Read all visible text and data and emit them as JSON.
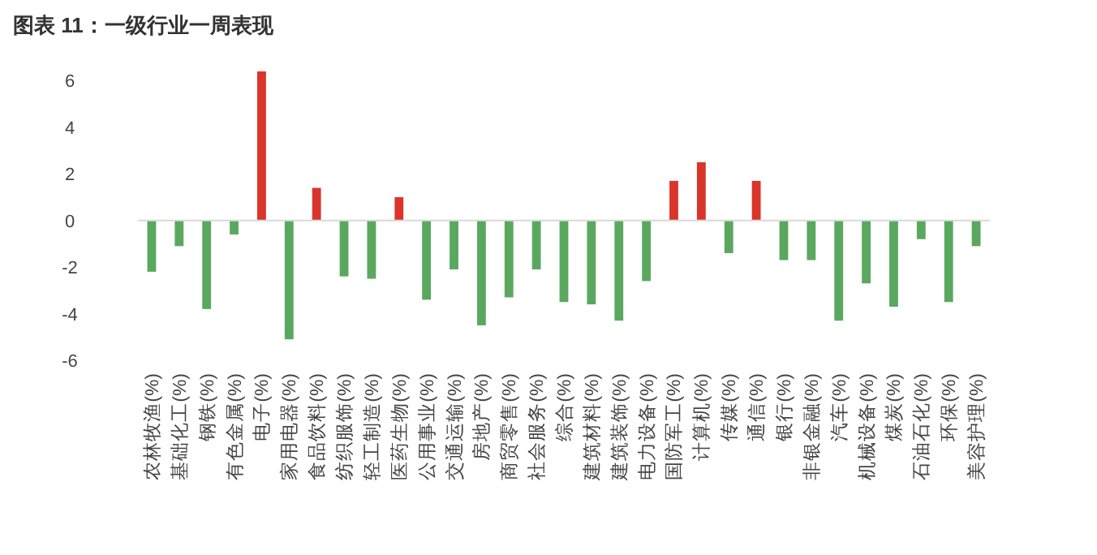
{
  "chart_data": {
    "type": "bar",
    "title": "图表 11：一级行业一周表现",
    "categories": [
      "农林牧渔(%)",
      "基础化工(%)",
      "钢铁(%)",
      "有色金属(%)",
      "电子(%)",
      "家用电器(%)",
      "食品饮料(%)",
      "纺织服饰(%)",
      "轻工制造(%)",
      "医药生物(%)",
      "公用事业(%)",
      "交通运输(%)",
      "房地产(%)",
      "商贸零售(%)",
      "社会服务(%)",
      "综合(%)",
      "建筑材料(%)",
      "建筑装饰(%)",
      "电力设备(%)",
      "国防军工(%)",
      "计算机(%)",
      "传媒(%)",
      "通信(%)",
      "银行(%)",
      "非银金融(%)",
      "汽车(%)",
      "机械设备(%)",
      "煤炭(%)",
      "石油石化(%)",
      "环保(%)",
      "美容护理(%)"
    ],
    "values": [
      -2.2,
      -1.1,
      -3.8,
      -0.6,
      6.4,
      -5.1,
      1.4,
      -2.4,
      -2.5,
      1.0,
      -3.4,
      -2.1,
      -4.5,
      -3.3,
      -2.1,
      -3.5,
      -3.6,
      -4.3,
      -2.6,
      1.7,
      2.5,
      -1.4,
      1.7,
      -1.7,
      -1.7,
      -4.3,
      -2.7,
      -3.7,
      -0.8,
      -3.5,
      -1.1
    ],
    "colors": [
      "#5aa85f",
      "#5aa85f",
      "#5aa85f",
      "#5aa85f",
      "#d9352a",
      "#5aa85f",
      "#d9352a",
      "#5aa85f",
      "#5aa85f",
      "#d9352a",
      "#5aa85f",
      "#5aa85f",
      "#5aa85f",
      "#5aa85f",
      "#5aa85f",
      "#5aa85f",
      "#5aa85f",
      "#5aa85f",
      "#5aa85f",
      "#d9352a",
      "#d9352a",
      "#5aa85f",
      "#d9352a",
      "#5aa85f",
      "#5aa85f",
      "#5aa85f",
      "#5aa85f",
      "#5aa85f",
      "#5aa85f",
      "#5aa85f",
      "#5aa85f"
    ],
    "ylim": [
      -6,
      6.4
    ],
    "yticks": [
      -6,
      -4,
      -2,
      0,
      2,
      4,
      6
    ]
  }
}
